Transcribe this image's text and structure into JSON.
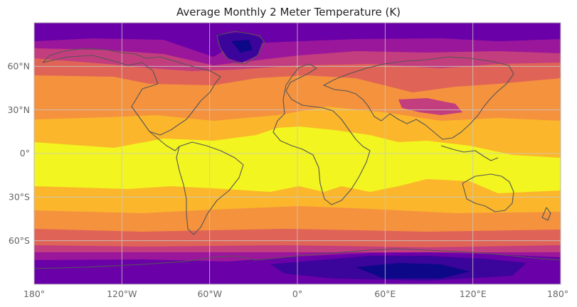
{
  "title": "Average Monthly 2 Meter Temperature (K)",
  "map": {
    "projection": "plate-carree",
    "lon_range": [
      -180,
      180
    ],
    "lat_range": [
      -90,
      90
    ],
    "colormap": "plasma",
    "colors": {
      "band_warmest": "#f2f51f",
      "band_warm": "#fbb62c",
      "band_mild": "#f4923e",
      "band_cool": "#e06357",
      "band_cold": "#c33e7e",
      "band_very_cold": "#9a179b",
      "band_frigid": "#6a00a8",
      "band_extreme": "#3b049a",
      "band_lowest": "#0d0887",
      "coastline": "#555555",
      "gridline": "#c8c8c8"
    },
    "gridlines": true,
    "coastlines": true
  },
  "axes": {
    "x_ticks": [
      "180°",
      "120°W",
      "60°W",
      "0°",
      "60°E",
      "120°E",
      "180°"
    ],
    "y_ticks": [
      "60°N",
      "30°N",
      "0°",
      "30°S",
      "60°S"
    ]
  }
}
